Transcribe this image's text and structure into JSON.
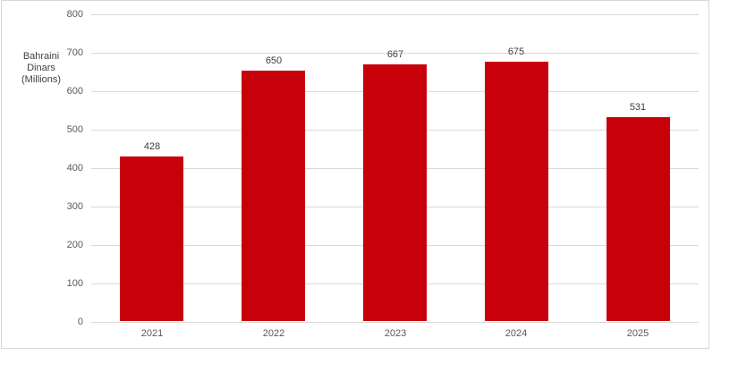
{
  "chart_data": {
    "type": "bar",
    "title": "",
    "categories": [
      "2021",
      "2022",
      "2023",
      "2024",
      "2025"
    ],
    "values": [
      428,
      650,
      667,
      675,
      531
    ],
    "data_labels": [
      "428",
      "650",
      "667",
      "675",
      "531"
    ],
    "xlabel": "",
    "ylabel": "Bahraini Dinars (Millions)",
    "ylabel_lines": [
      "Bahraini",
      "Dinars",
      "(Millions)"
    ],
    "ylim": [
      0,
      800
    ],
    "yticks": [
      0,
      100,
      200,
      300,
      400,
      500,
      600,
      700,
      800
    ],
    "grid": "horizontal",
    "legend": "none",
    "series_name": ""
  },
  "colors": {
    "bar": "#c8000a",
    "gridline": "#d9d9d9",
    "axis_line": "#d9d9d9",
    "chart_border": "#d6d6d6",
    "tick_label": "#595959",
    "data_label": "#404040",
    "axis_title": "#404040",
    "background": "#ffffff"
  }
}
